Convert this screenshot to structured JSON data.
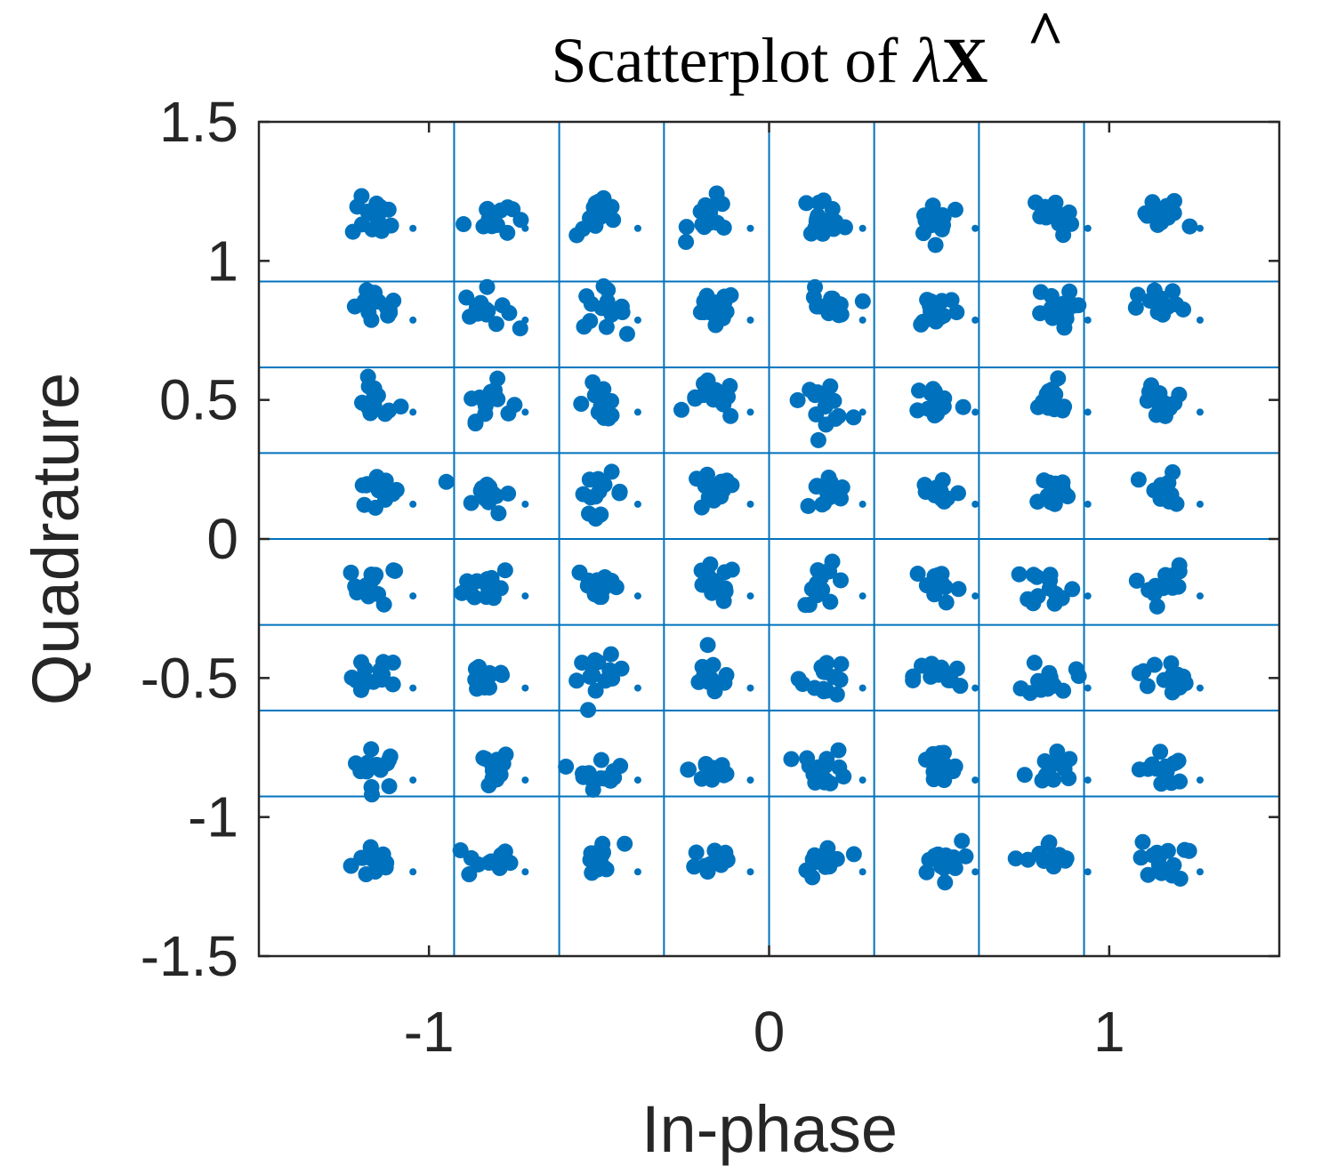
{
  "chart_data": {
    "type": "scatter",
    "title": "Scatterplot of λX̂",
    "title_parts": {
      "prefix": "Scatterplot of ",
      "symbol": "λ",
      "variable": "X",
      "hat": "^"
    },
    "xlabel": "In-phase",
    "ylabel": "Quadrature",
    "xlim": [
      -1.5,
      1.5
    ],
    "ylim": [
      -1.5,
      1.5
    ],
    "xticks": [
      -1,
      0,
      1
    ],
    "xtick_labels": [
      "-1",
      "0",
      "1"
    ],
    "yticks": [
      -1.5,
      -1,
      -0.5,
      0,
      0.5,
      1,
      1.5
    ],
    "ytick_labels": [
      "-1.5",
      "-1",
      "-0.5",
      "0",
      "0.5",
      "1",
      "1.5"
    ],
    "decision_boundaries_x": [
      -0.926,
      -0.617,
      -0.309,
      0,
      0.309,
      0.617,
      0.926
    ],
    "decision_boundaries_y": [
      -0.926,
      -0.617,
      -0.309,
      0,
      0.309,
      0.617,
      0.926
    ],
    "constellation_levels": [
      -1.157,
      -0.827,
      -0.496,
      -0.165,
      0.165,
      0.496,
      0.827,
      1.157
    ],
    "marker_color": "#0072BD",
    "grid_color": "#0072BD",
    "axis_color": "#262626",
    "points_per_cluster": 14,
    "series": [
      {
        "marker": "filled-circle"
      }
    ]
  }
}
